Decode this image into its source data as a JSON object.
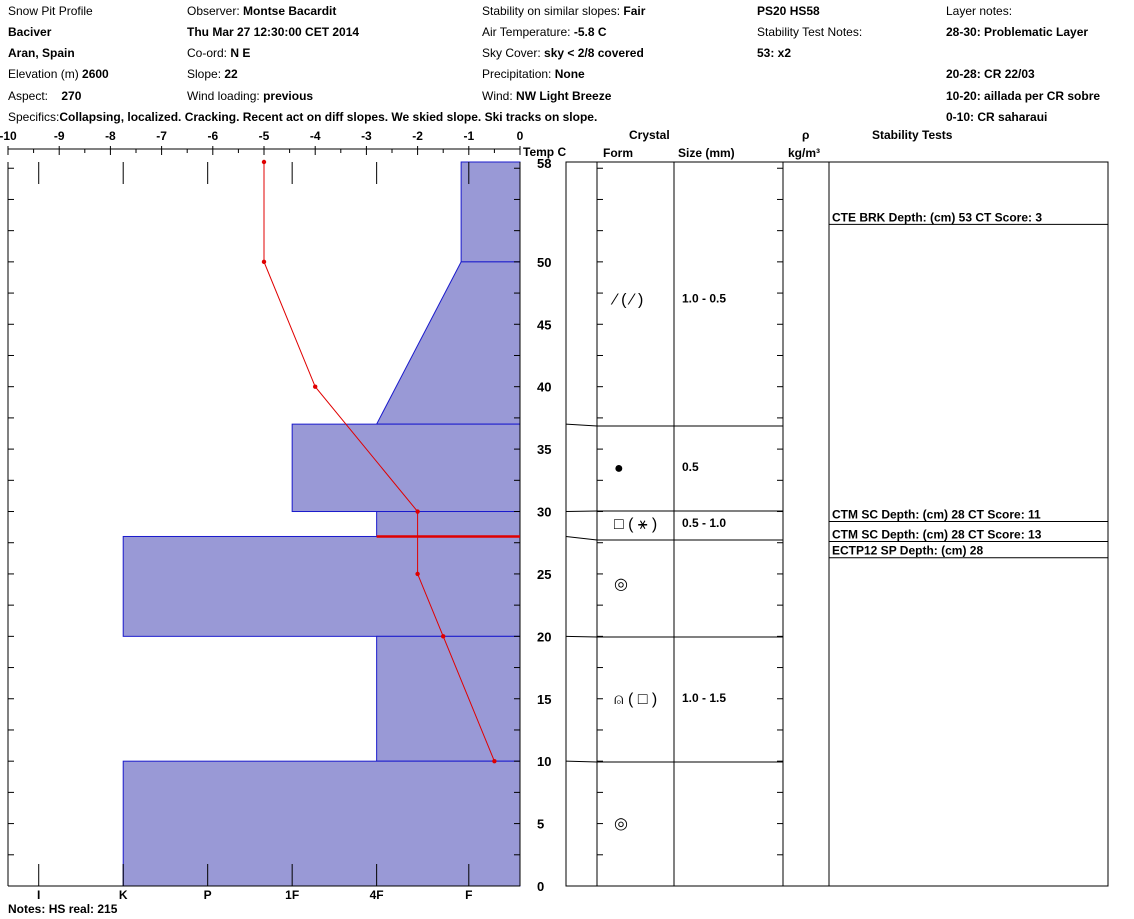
{
  "header": {
    "col1": {
      "title": "Snow Pit Profile",
      "location": "Baciver",
      "region": "Aran, Spain",
      "elevation_label": "Elevation (m)",
      "elevation_value": "2600",
      "aspect_label": "Aspect:",
      "aspect_value": "270",
      "specifics_label": "Specifics:",
      "specifics_value": "Collapsing, localized. Cracking. Recent act on diff slopes. We skied slope. Ski tracks on slope."
    },
    "col2": {
      "observer_label": "Observer:",
      "observer_value": "Montse Bacardit",
      "datetime": "Thu Mar 27 12:30:00 CET 2014",
      "coord_label": "Co-ord:",
      "coord_value": "N E",
      "slope_label": "Slope:",
      "slope_value": "22",
      "wind_loading_label": "Wind loading:",
      "wind_loading_value": "previous"
    },
    "col3": {
      "stability_label": "Stability on similar slopes:",
      "stability_value": "Fair",
      "air_temp_label": "Air Temperature:",
      "air_temp_value": "-5.8 C",
      "sky_label": "Sky Cover:",
      "sky_value": "sky < 2/8 covered",
      "precip_label": "Precipitation:",
      "precip_value": "None",
      "wind_label": "Wind:",
      "wind_value": "NW Light Breeze"
    },
    "col4": {
      "code": "PS20 HS58",
      "stn_label": "Stability Test Notes:",
      "stn_value": "53: x2"
    },
    "col5": {
      "layer_notes_label": "Layer notes:",
      "notes": [
        "28-30: Problematic Layer",
        "",
        "20-28: CR 22/03",
        "10-20: aillada per CR sobre",
        "0-10: CR saharaui"
      ]
    }
  },
  "columns": {
    "crystal": "Crystal",
    "form": "Form",
    "size": "Size (mm)",
    "rho": "ρ",
    "density_unit": "kg/m³",
    "stability_tests": "Stability Tests",
    "temp": "Temp C"
  },
  "notes": {
    "label": "Notes:",
    "value": "HS real: 215"
  },
  "chart_data": {
    "type": "snow-profile",
    "temp_axis": {
      "ticks": [
        -10,
        -9,
        -8,
        -7,
        -6,
        -5,
        -4,
        -3,
        -2,
        -1,
        0
      ],
      "range": [
        -10,
        0
      ]
    },
    "depth_axis": {
      "range": [
        0,
        58
      ],
      "top_label": "58",
      "ticks": [
        5,
        10,
        15,
        20,
        25,
        30,
        35,
        40,
        45,
        50
      ]
    },
    "hardness_axis": {
      "labels": [
        "I",
        "K",
        "P",
        "1F",
        "4F",
        "F"
      ],
      "positions": [
        -9.4,
        -7.75,
        -6.1,
        -4.45,
        -2.8,
        -1.0
      ]
    },
    "hardness_layers": [
      {
        "from": 50,
        "to": 58,
        "top_temp": -1.15,
        "bottom_temp": -1.15
      },
      {
        "from": 37,
        "to": 50,
        "top_temp": -2.8,
        "bottom_temp": -1.15,
        "sloped": true
      },
      {
        "from": 30,
        "to": 37,
        "temp": -4.45
      },
      {
        "from": 28,
        "to": 30,
        "temp": -2.8
      },
      {
        "from": 20,
        "to": 28,
        "temp": -7.75
      },
      {
        "from": 10,
        "to": 20,
        "temp": -2.8
      },
      {
        "from": 0,
        "to": 10,
        "temp": -7.75
      }
    ],
    "temperature_profile": [
      {
        "depth": 58,
        "temp": -5
      },
      {
        "depth": 50,
        "temp": -5
      },
      {
        "depth": 40,
        "temp": -4
      },
      {
        "depth": 30,
        "temp": -2
      },
      {
        "depth": 25,
        "temp": -2
      },
      {
        "depth": 20,
        "temp": -1.5
      },
      {
        "depth": 10,
        "temp": -0.5
      }
    ],
    "problem_layer_depth": 28,
    "layer_boundaries": [
      37,
      30,
      28,
      20,
      10
    ],
    "crystal_layers": [
      {
        "depth": 47,
        "form": "⁄ ( ⁄ )",
        "size": "1.0 - 0.5"
      },
      {
        "depth": 33.5,
        "form": "●",
        "size": "0.5"
      },
      {
        "depth": 29,
        "form": "□ ( ⚹ )",
        "size": "0.5 - 1.0"
      },
      {
        "depth": 24.2,
        "form": "◎",
        "size": ""
      },
      {
        "depth": 15,
        "form": "⍝ ( □ )",
        "size": "1.0 - 1.5"
      },
      {
        "depth": 5,
        "form": "◎",
        "size": ""
      }
    ],
    "stability_tests": [
      {
        "depth": 53,
        "text": "CTE BRK Depth: (cm) 53 CT Score: 3"
      },
      {
        "depth": 29.2,
        "text": "CTM SC Depth: (cm) 28 CT Score: 11"
      },
      {
        "depth": 27.6,
        "text": "CTM SC Depth: (cm) 28 CT Score: 13"
      },
      {
        "depth": 26.3,
        "text": "ECTP12 SP Depth: (cm) 28"
      }
    ]
  }
}
